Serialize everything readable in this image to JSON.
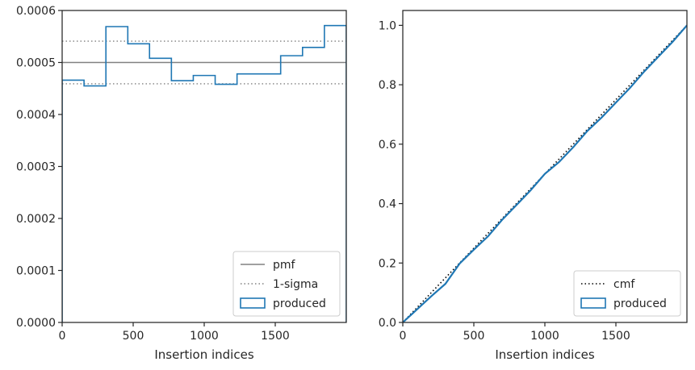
{
  "chart_data": [
    {
      "type": "step",
      "title": "",
      "xlabel": "Insertion indices",
      "ylabel": "",
      "xlim": [
        0,
        2000
      ],
      "ylim": [
        0,
        0.0006
      ],
      "xticks": [
        0,
        500,
        1000,
        1500
      ],
      "xtick_labels": [
        "0",
        "500",
        "1000",
        "1500"
      ],
      "yticks": [
        0,
        0.0001,
        0.0002,
        0.0003,
        0.0004,
        0.0005,
        0.0006
      ],
      "ytick_labels": [
        "0.0000",
        "0.0001",
        "0.0002",
        "0.0003",
        "0.0004",
        "0.0005",
        "0.0006"
      ],
      "grid": false,
      "legend_position": "lower-right",
      "legend": [
        "pmf",
        "1-sigma",
        "produced"
      ],
      "reference_lines": [
        {
          "name": "pmf",
          "y": 0.0005,
          "style": "solid",
          "color": "#808080"
        },
        {
          "name": "1-sigma",
          "y": 0.000541,
          "style": "dotted",
          "color": "#808080"
        },
        {
          "name": "1-sigma",
          "y": 0.000459,
          "style": "dotted",
          "color": "#808080"
        }
      ],
      "series": [
        {
          "name": "produced",
          "color": "#1f77b4",
          "bin_edges": [
            0,
            154,
            308,
            462,
            615,
            769,
            923,
            1077,
            1231,
            1385,
            1538,
            1692,
            1846,
            2000
          ],
          "values": [
            0.000466,
            0.000455,
            0.000569,
            0.000536,
            0.000508,
            0.000465,
            0.000475,
            0.000458,
            0.000478,
            0.000478,
            0.000513,
            0.000529,
            0.000571
          ]
        }
      ]
    },
    {
      "type": "line",
      "title": "",
      "xlabel": "Insertion indices",
      "ylabel": "",
      "xlim": [
        0,
        2000
      ],
      "ylim": [
        0,
        1.05
      ],
      "xticks": [
        0,
        500,
        1000,
        1500
      ],
      "xtick_labels": [
        "0",
        "500",
        "1000",
        "1500"
      ],
      "yticks": [
        0,
        0.2,
        0.4,
        0.6,
        0.8,
        1.0
      ],
      "ytick_labels": [
        "0.0",
        "0.2",
        "0.4",
        "0.6",
        "0.8",
        "1.0"
      ],
      "grid": false,
      "legend_position": "lower-right",
      "legend": [
        "cmf",
        "produced"
      ],
      "series": [
        {
          "name": "cmf",
          "style": "dotted",
          "color": "#000000",
          "x": [
            0,
            2000
          ],
          "y": [
            0,
            1
          ]
        },
        {
          "name": "produced",
          "style": "solid",
          "color": "#1f77b4",
          "x": [
            0,
            100,
            200,
            300,
            400,
            500,
            600,
            700,
            800,
            900,
            1000,
            1100,
            1200,
            1300,
            1400,
            1500,
            1600,
            1700,
            1800,
            1900,
            2000
          ],
          "y": [
            0,
            0.044,
            0.088,
            0.13,
            0.198,
            0.245,
            0.29,
            0.346,
            0.395,
            0.445,
            0.5,
            0.54,
            0.59,
            0.645,
            0.69,
            0.74,
            0.79,
            0.845,
            0.895,
            0.945,
            1.0
          ]
        }
      ]
    }
  ]
}
